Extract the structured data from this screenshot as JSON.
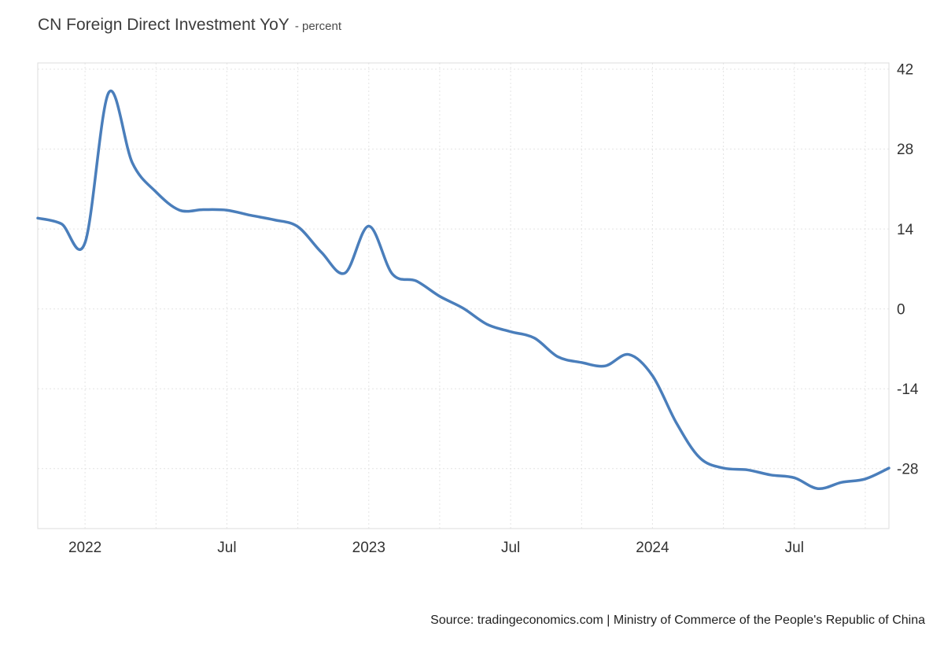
{
  "header": {
    "title": "CN Foreign Direct Investment YoY",
    "subtitle": "- percent"
  },
  "footer": {
    "source": "Source: tradingeconomics.com | Ministry of Commerce of the People's Republic of China"
  },
  "colors": {
    "line": "#4a7ebb",
    "grid": "#e4e4e4",
    "axis_text": "#333333"
  },
  "chart_data": {
    "type": "line",
    "title": "CN Foreign Direct Investment YoY",
    "ylabel": "percent",
    "xlabel": "",
    "grid": true,
    "legend": "none",
    "x": [
      "Nov 2021",
      "Dec 2021",
      "Jan 2022",
      "Feb 2022",
      "Mar 2022",
      "Apr 2022",
      "May 2022",
      "Jun 2022",
      "Jul 2022",
      "Aug 2022",
      "Sep 2022",
      "Oct 2022",
      "Nov 2022",
      "Dec 2022",
      "Jan 2023",
      "Feb 2023",
      "Mar 2023",
      "Apr 2023",
      "May 2023",
      "Jun 2023",
      "Jul 2023",
      "Aug 2023",
      "Sep 2023",
      "Oct 2023",
      "Nov 2023",
      "Dec 2023",
      "Jan 2024",
      "Feb 2024",
      "Mar 2024",
      "Apr 2024",
      "May 2024",
      "Jun 2024",
      "Jul 2024",
      "Aug 2024",
      "Sep 2024",
      "Oct 2024",
      "Nov 2024"
    ],
    "values": [
      15.9,
      14.9,
      11.6,
      37.9,
      25.6,
      20.5,
      17.3,
      17.4,
      17.3,
      16.4,
      15.6,
      14.4,
      9.9,
      6.3,
      14.5,
      6.1,
      4.9,
      2.2,
      0.1,
      -2.7,
      -4.0,
      -5.1,
      -8.4,
      -9.4,
      -10.0,
      -8.0,
      -11.7,
      -19.9,
      -26.1,
      -27.9,
      -28.2,
      -29.1,
      -29.6,
      -31.5,
      -30.4,
      -29.8,
      -27.9
    ],
    "y_ticks": [
      42,
      28,
      14,
      0,
      -14,
      -28
    ],
    "ylim": [
      -38.5,
      43.1
    ],
    "x_tick_indices": [
      2,
      8,
      14,
      20,
      26,
      32
    ],
    "x_tick_labels": [
      "2022",
      "Jul",
      "2023",
      "Jul",
      "2024",
      "Jul"
    ],
    "x_grid_indices": [
      2,
      5,
      8,
      11,
      14,
      17,
      20,
      23,
      26,
      29,
      32,
      35
    ]
  }
}
